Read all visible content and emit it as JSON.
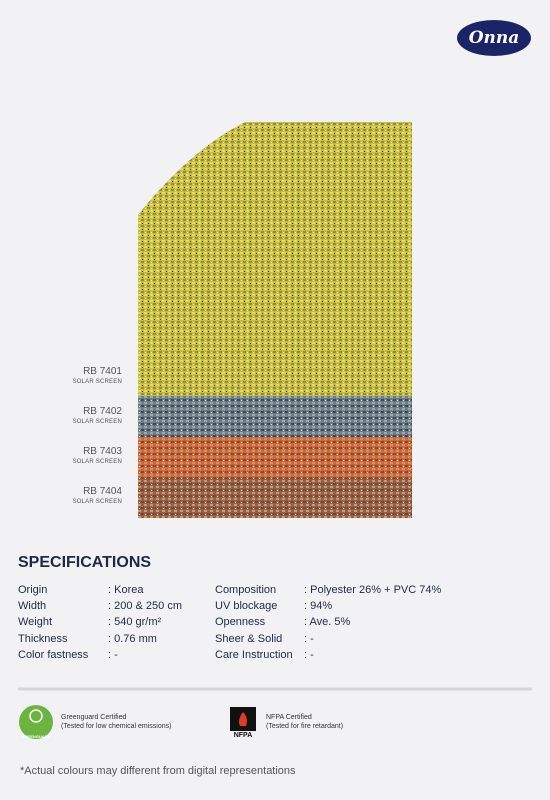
{
  "logo": "Onna",
  "swatches": [
    {
      "code": "RB 7401",
      "type": "SOLAR SCREEN"
    },
    {
      "code": "RB 7402",
      "type": "SOLAR SCREEN"
    },
    {
      "code": "RB 7403",
      "type": "SOLAR SCREEN"
    },
    {
      "code": "RB 7404",
      "type": "SOLAR SCREEN"
    }
  ],
  "specifications": {
    "title": "SPECIFICATIONS",
    "left": [
      {
        "label": "Origin",
        "value": ": Korea"
      },
      {
        "label": "Width",
        "value": ": 200 & 250 cm"
      },
      {
        "label": "Weight",
        "value": ": 540 gr/m²"
      },
      {
        "label": "Thickness",
        "value": ": 0.76 mm"
      },
      {
        "label": "Color fastness",
        "value": ": -"
      }
    ],
    "right": [
      {
        "label": "Composition",
        "value": ": Polyester 26% + PVC 74%"
      },
      {
        "label": "UV blockage",
        "value": ": 94%"
      },
      {
        "label": "Openness",
        "value": ": Ave. 5%"
      },
      {
        "label": "Sheer & Solid",
        "value": ": -"
      },
      {
        "label": "Care Instruction",
        "value": ": -"
      }
    ]
  },
  "certifications": [
    {
      "badge": "GREENGUARD",
      "name": "Greenguard Certified",
      "note": "(Tested for low chemical emissions)"
    },
    {
      "badge": "NFPA",
      "name": "NFPA Certified",
      "note": "(Tested for fire retardant)"
    }
  ],
  "footnote": "*Actual colours may different from digital representations"
}
